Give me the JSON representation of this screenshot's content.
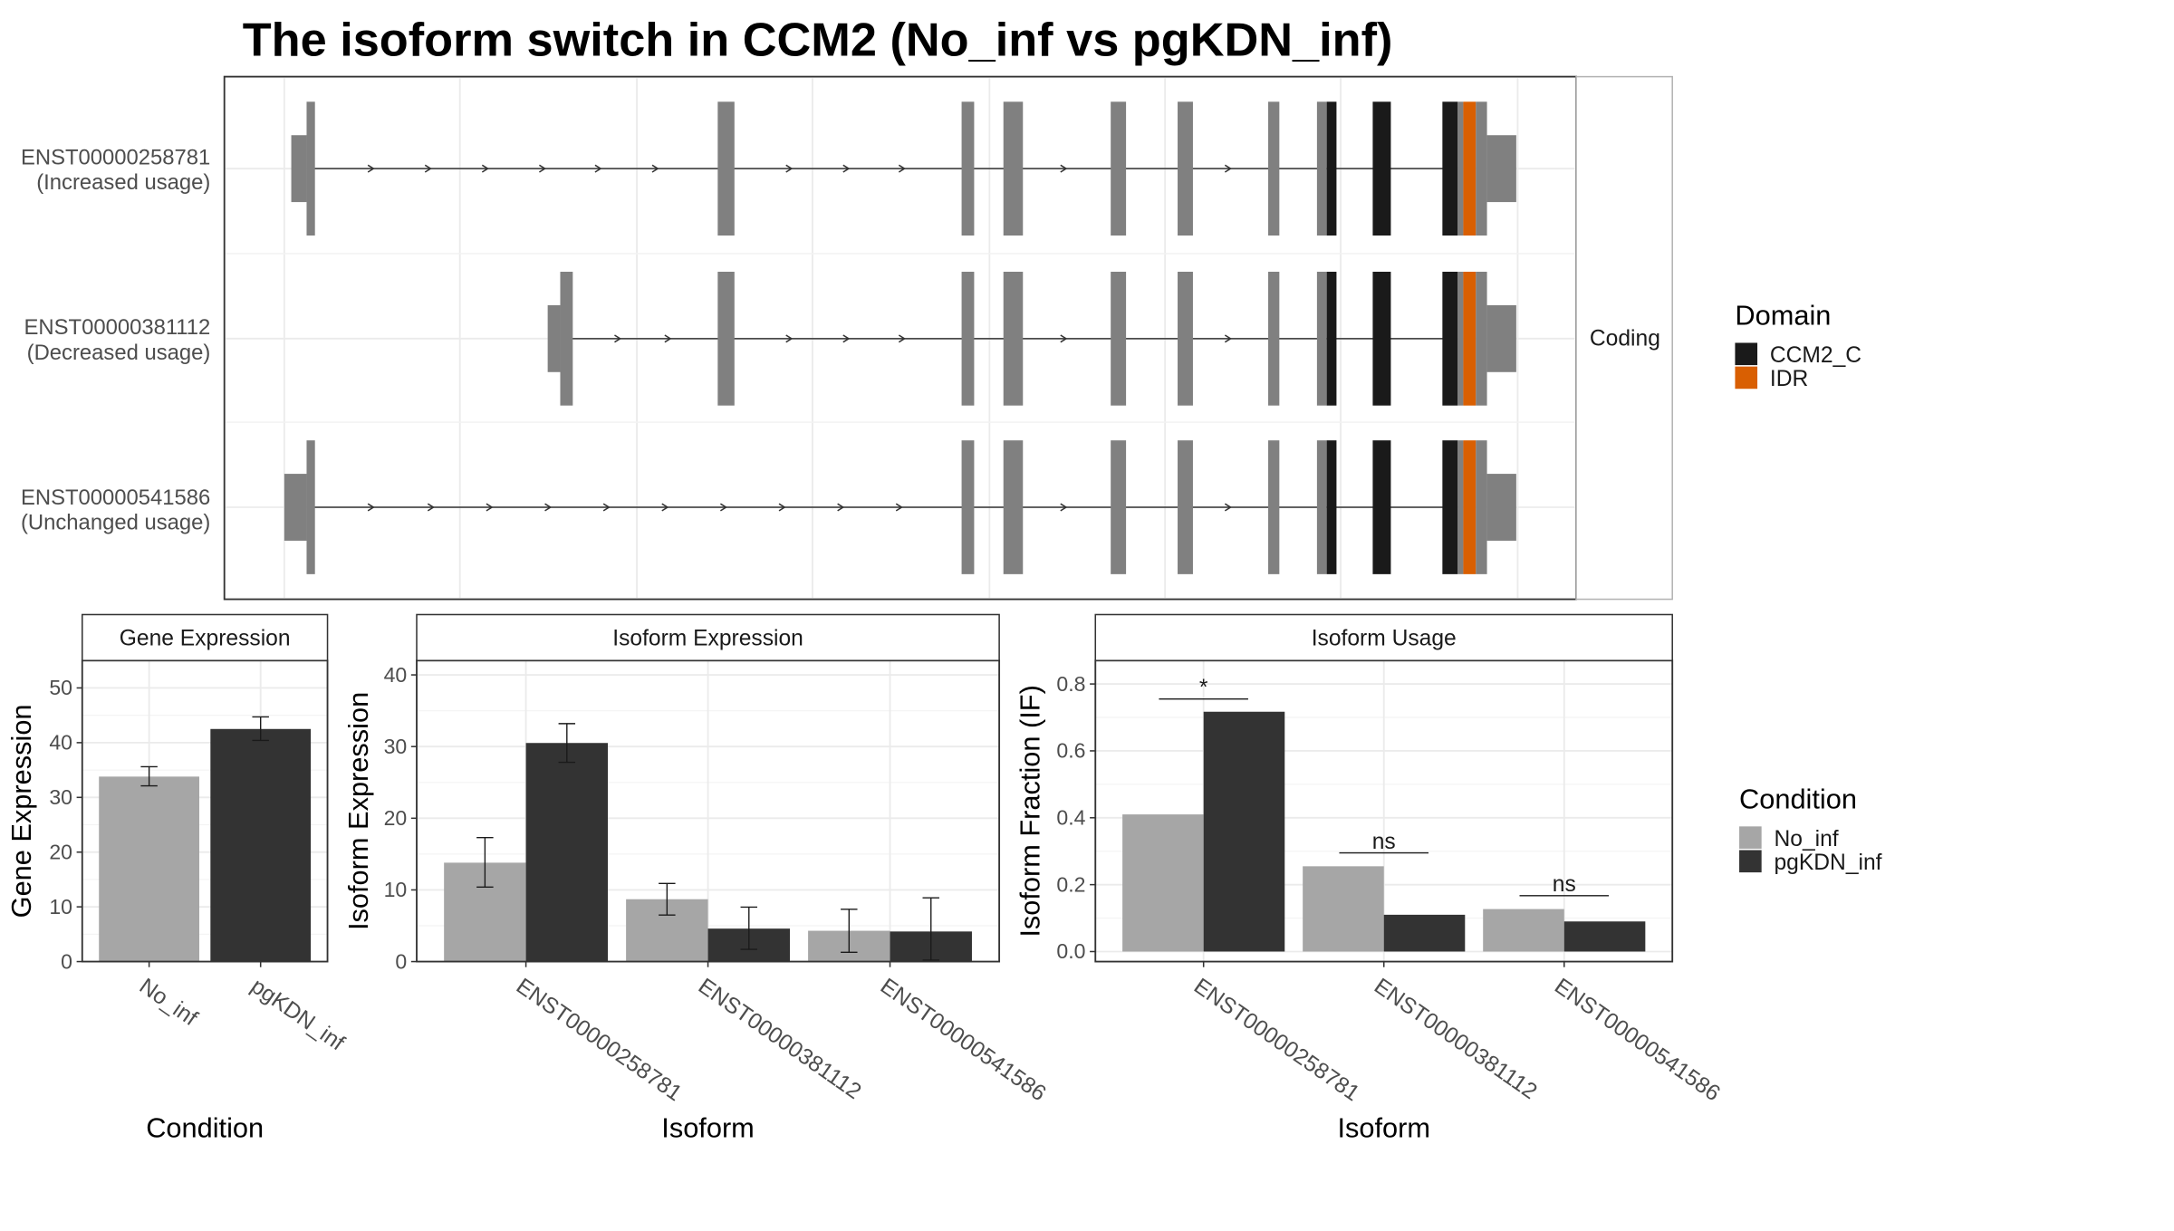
{
  "title": "The isoform switch in CCM2 (No_inf vs pgKDN_inf)",
  "colors": {
    "exon": "#808080",
    "ccm2_c": "#1a1a1a",
    "idr": "#d95f02",
    "no_inf": "#a6a6a6",
    "pgkdn_inf": "#333333",
    "grid": "#ebebeb",
    "strip_fill": "#ffffff",
    "panel_border": "#333333"
  },
  "structure_panel": {
    "facet_label": "Coding",
    "isoforms": [
      {
        "id": "ENST00000258781",
        "status": "(Increased usage)"
      },
      {
        "id": "ENST00000381112",
        "status": "(Decreased usage)"
      },
      {
        "id": "ENST00000541586",
        "status": "(Unchanged usage)"
      }
    ]
  },
  "domain_legend": {
    "title": "Domain",
    "items": [
      {
        "label": "CCM2_C",
        "color": "#1a1a1a"
      },
      {
        "label": "IDR",
        "color": "#d95f02"
      }
    ]
  },
  "condition_legend": {
    "title": "Condition",
    "items": [
      {
        "label": "No_inf",
        "color": "#a6a6a6"
      },
      {
        "label": "pgKDN_inf",
        "color": "#333333"
      }
    ]
  },
  "chart_data": [
    {
      "type": "bar",
      "title": "Gene Expression",
      "xlabel": "Condition",
      "ylabel": "Gene Expression",
      "ylim": [
        0,
        55
      ],
      "yticks": [
        0,
        10,
        20,
        30,
        40,
        50
      ],
      "grid": true,
      "categories": [
        "No_inf",
        "pgKDN_inf"
      ],
      "series": [
        {
          "name": "No_inf",
          "values": [
            33.8,
            null
          ],
          "err_low": [
            32.1,
            null
          ],
          "err_high": [
            35.6,
            null
          ]
        },
        {
          "name": "pgKDN_inf",
          "values": [
            null,
            42.5
          ],
          "err_low": [
            null,
            40.4
          ],
          "err_high": [
            null,
            44.7
          ]
        }
      ]
    },
    {
      "type": "bar",
      "title": "Isoform Expression",
      "xlabel": "Isoform",
      "ylabel": "Isoform Expression",
      "ylim": [
        0,
        42
      ],
      "yticks": [
        0,
        10,
        20,
        30,
        40
      ],
      "grid": true,
      "categories": [
        "ENST00000258781",
        "ENST00000381112",
        "ENST00000541586"
      ],
      "series": [
        {
          "name": "No_inf",
          "values": [
            13.8,
            8.7,
            4.3
          ],
          "err_low": [
            10.4,
            6.5,
            1.3
          ],
          "err_high": [
            17.3,
            10.9,
            7.3
          ]
        },
        {
          "name": "pgKDN_inf",
          "values": [
            30.5,
            4.6,
            4.2
          ],
          "err_low": [
            27.8,
            1.7,
            0.2
          ],
          "err_high": [
            33.2,
            7.6,
            8.9
          ]
        }
      ]
    },
    {
      "type": "bar",
      "title": "Isoform Usage",
      "xlabel": "Isoform",
      "ylabel": "Isoform Fraction (IF)",
      "ylim": [
        -0.03,
        0.87
      ],
      "yticks": [
        0.0,
        0.2,
        0.4,
        0.6,
        0.8
      ],
      "ytick_labels": [
        "0.0",
        "0.2",
        "0.4",
        "0.6",
        "0.8"
      ],
      "grid": true,
      "categories": [
        "ENST00000258781",
        "ENST00000381112",
        "ENST00000541586"
      ],
      "series": [
        {
          "name": "No_inf",
          "values": [
            0.41,
            0.255,
            0.127
          ]
        },
        {
          "name": "pgKDN_inf",
          "values": [
            0.717,
            0.11,
            0.09
          ]
        }
      ],
      "significance": [
        {
          "category": "ENST00000258781",
          "label": "*",
          "y": 0.755
        },
        {
          "category": "ENST00000381112",
          "label": "ns",
          "y": 0.295
        },
        {
          "category": "ENST00000541586",
          "label": "ns",
          "y": 0.167
        }
      ]
    }
  ]
}
